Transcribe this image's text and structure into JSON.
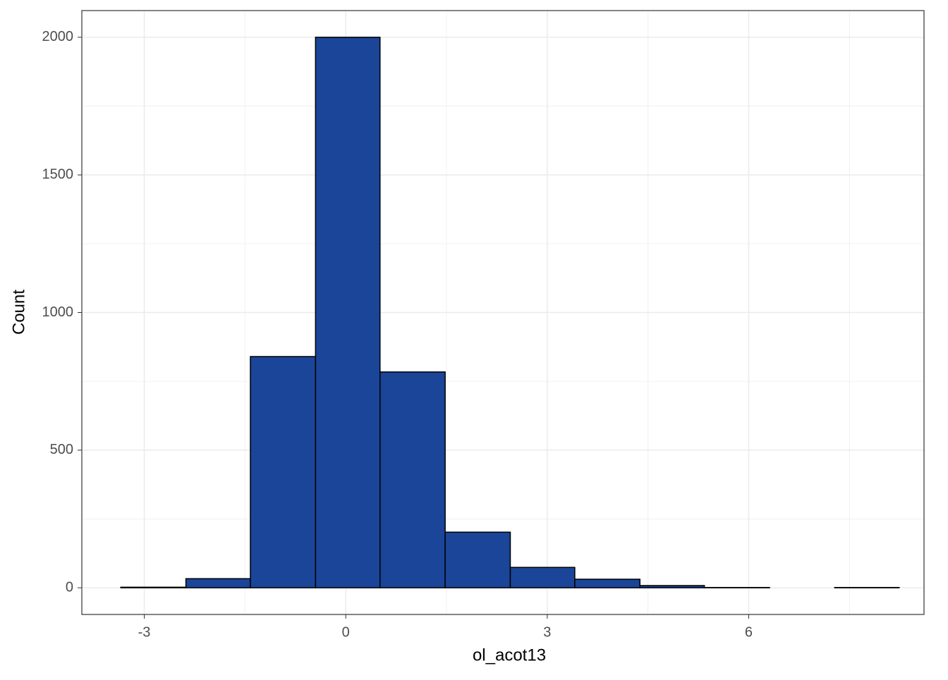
{
  "chart_data": {
    "type": "histogram",
    "x_label": "ol_acot13",
    "y_label": "Count",
    "bins": [
      -3.35,
      -2.38,
      -1.42,
      -0.45,
      0.51,
      1.48,
      2.45,
      3.41,
      4.38,
      5.34,
      6.31,
      7.28,
      8.24
    ],
    "values": [
      2,
      33,
      840,
      2000,
      784,
      202,
      74,
      31,
      8,
      1,
      0,
      1
    ],
    "color": "#1a4599",
    "edgecolor": "#000000",
    "xlim": [
      -3.93,
      8.61
    ],
    "ylim": [
      -97,
      2097
    ],
    "xticks": [
      -3,
      0,
      3,
      6
    ],
    "yticks": [
      0,
      500,
      1000,
      1500,
      2000
    ],
    "xminorticks": [
      -1.5,
      1.5,
      4.5,
      7.5
    ],
    "yminorticks": [
      250,
      750,
      1250,
      1750
    ],
    "grid": true
  }
}
